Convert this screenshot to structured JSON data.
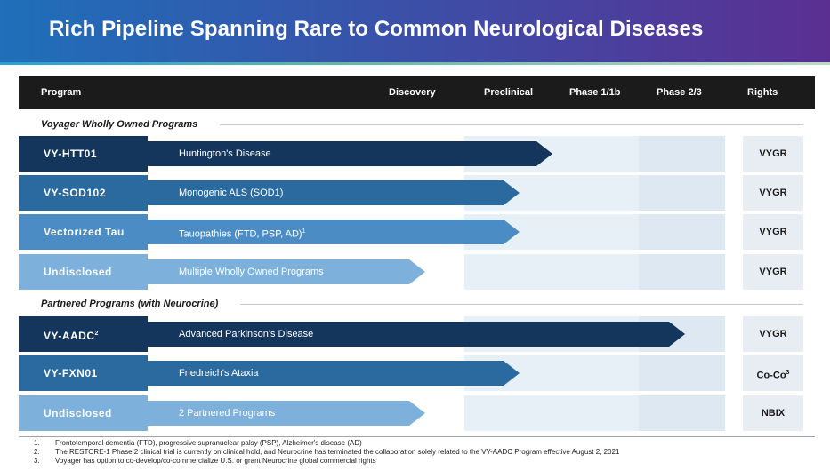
{
  "title": "Rich Pipeline Spanning Rare to Common Neurological Diseases",
  "header": {
    "program": "Program",
    "discovery": "Discovery",
    "preclinical": "Preclinical",
    "phase1": "Phase 1/1b",
    "phase2": "Phase 2/3",
    "rights": "Rights"
  },
  "sections": {
    "owned": "Voyager Wholly Owned Programs",
    "partnered": "Partnered Programs (with Neurocrine)"
  },
  "rows": [
    {
      "program": "VY-HTT01",
      "program_sup": "",
      "indication": "Huntington's Disease",
      "indication_sup": "",
      "rights": "VYGR",
      "rights_sup": ""
    },
    {
      "program": "VY-SOD102",
      "program_sup": "",
      "indication": "Monogenic ALS (SOD1)",
      "indication_sup": "",
      "rights": "VYGR",
      "rights_sup": ""
    },
    {
      "program": "Vectorized Tau",
      "program_sup": "",
      "indication": "Tauopathies (FTD, PSP, AD)",
      "indication_sup": "1",
      "rights": "VYGR",
      "rights_sup": ""
    },
    {
      "program": "Undisclosed",
      "program_sup": "",
      "indication": "Multiple Wholly Owned Programs",
      "indication_sup": "",
      "rights": "VYGR",
      "rights_sup": ""
    },
    {
      "program": "VY-AADC",
      "program_sup": "2",
      "indication": "Advanced Parkinson's Disease",
      "indication_sup": "",
      "rights": "VYGR",
      "rights_sup": ""
    },
    {
      "program": "VY-FXN01",
      "program_sup": "",
      "indication": "Friedreich's Ataxia",
      "indication_sup": "",
      "rights": "Co-Co",
      "rights_sup": "3"
    },
    {
      "program": "Undisclosed",
      "program_sup": "",
      "indication": "2 Partnered Programs",
      "indication_sup": "",
      "rights": "NBIX",
      "rights_sup": ""
    }
  ],
  "footnotes": [
    {
      "num": "1.",
      "text": "Frontotemporal dementia (FTD), progressive supranuclear palsy (PSP), Alzheimer's disease (AD)"
    },
    {
      "num": "2.",
      "text": "The RESTORE-1 Phase 2 clinical trial is currently on clinical hold, and Neurocrine has terminated the collaboration solely related to the VY-AADC Program effective August 2, 2021"
    },
    {
      "num": "3.",
      "text": "Voyager has option to co-develop/co-commercialize U.S. or grant Neurocrine global commercial rights"
    }
  ],
  "colors": {
    "dark": "#15365c",
    "mid": "#2a6a9e",
    "light": "#4b8cc4",
    "pale": "#7eb0dc"
  }
}
